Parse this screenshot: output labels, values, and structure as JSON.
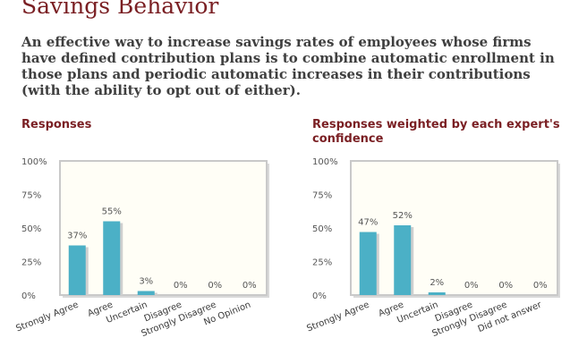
{
  "page": {
    "title": "Savings Behavior",
    "question": "An effective way to increase savings rates of employees whose firms have defined contribution plans is to combine automatic enrollment in those plans and periodic automatic increases in their contributions (with the ability to opt out of either)."
  },
  "colors": {
    "bar": "#4bb0c6",
    "bar_shadow": "#cfcfcf",
    "plot_background": "#fffef6",
    "plot_border": "#c9c9c9",
    "title": "#7a1f23"
  },
  "chart_data": [
    {
      "type": "bar",
      "title": "Responses",
      "categories": [
        "Strongly Agree",
        "Agree",
        "Uncertain",
        "Disagree",
        "Strongly Disagree",
        "No Opinion"
      ],
      "values": [
        37,
        55,
        3,
        0,
        0,
        0
      ],
      "value_labels": [
        "37%",
        "55%",
        "3%",
        "0%",
        "0%",
        "0%"
      ],
      "ylim": [
        0,
        100
      ],
      "yticks": [
        0,
        25,
        50,
        75,
        100
      ],
      "ytick_labels": [
        "0%",
        "25%",
        "50%",
        "75%",
        "100%"
      ],
      "grid": false
    },
    {
      "type": "bar",
      "title": "Responses weighted by each expert's confidence",
      "categories": [
        "Strongly Agree",
        "Agree",
        "Uncertain",
        "Disagree",
        "Strongly Disagree",
        "Did not answer"
      ],
      "values": [
        47,
        52,
        2,
        0,
        0,
        0
      ],
      "value_labels": [
        "47%",
        "52%",
        "2%",
        "0%",
        "0%",
        "0%"
      ],
      "ylim": [
        0,
        100
      ],
      "yticks": [
        0,
        25,
        50,
        75,
        100
      ],
      "ytick_labels": [
        "0%",
        "25%",
        "50%",
        "75%",
        "100%"
      ],
      "grid": false
    }
  ]
}
